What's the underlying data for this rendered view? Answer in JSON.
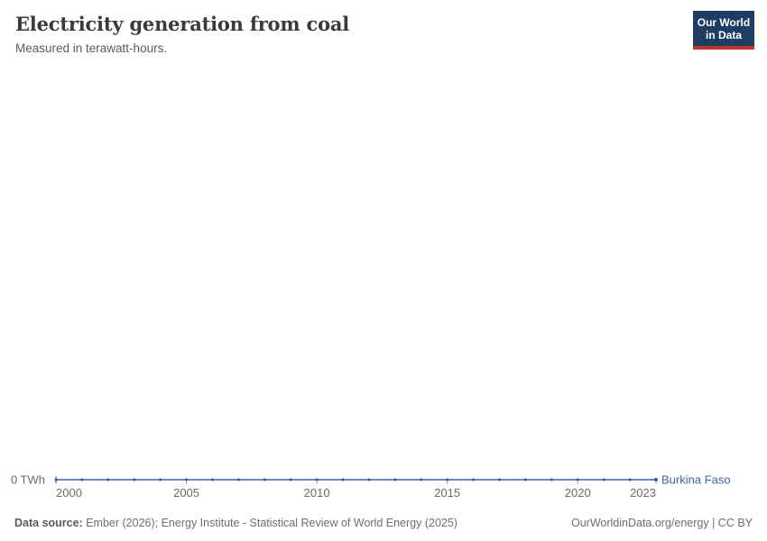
{
  "header": {
    "title": "Electricity generation from coal",
    "subtitle": "Measured in terawatt-hours.",
    "logo_line1": "Our World",
    "logo_line2": "in Data",
    "logo_bg_color": "#1d3d63",
    "logo_stripe_color": "#c0362c"
  },
  "chart_data": {
    "type": "line",
    "title": "Electricity generation from coal",
    "subtitle": "Measured in terawatt-hours.",
    "unit": "TWh",
    "x": [
      2000,
      2001,
      2002,
      2003,
      2004,
      2005,
      2006,
      2007,
      2008,
      2009,
      2010,
      2011,
      2012,
      2013,
      2014,
      2015,
      2016,
      2017,
      2018,
      2019,
      2020,
      2021,
      2022,
      2023
    ],
    "series": [
      {
        "name": "Burkina Faso",
        "color": "#3d64a8",
        "values": [
          0,
          0,
          0,
          0,
          0,
          0,
          0,
          0,
          0,
          0,
          0,
          0,
          0,
          0,
          0,
          0,
          0,
          0,
          0,
          0,
          0,
          0,
          0,
          0
        ]
      }
    ],
    "x_tick_labels": [
      "2000",
      "2005",
      "2010",
      "2015",
      "2020",
      "2023"
    ],
    "y_zero_label": "0 TWh",
    "y_ticks": [
      "0 TWh"
    ],
    "ylim": [
      0,
      0
    ],
    "xlim": [
      2000,
      2023
    ],
    "grid": false,
    "legend_position": "end-of-line"
  },
  "footer": {
    "source_label": "Data source:",
    "source_text": "Ember (2026); Energy Institute - Statistical Review of World Energy (2025)",
    "credit": "OurWorldinData.org/energy | CC BY"
  }
}
